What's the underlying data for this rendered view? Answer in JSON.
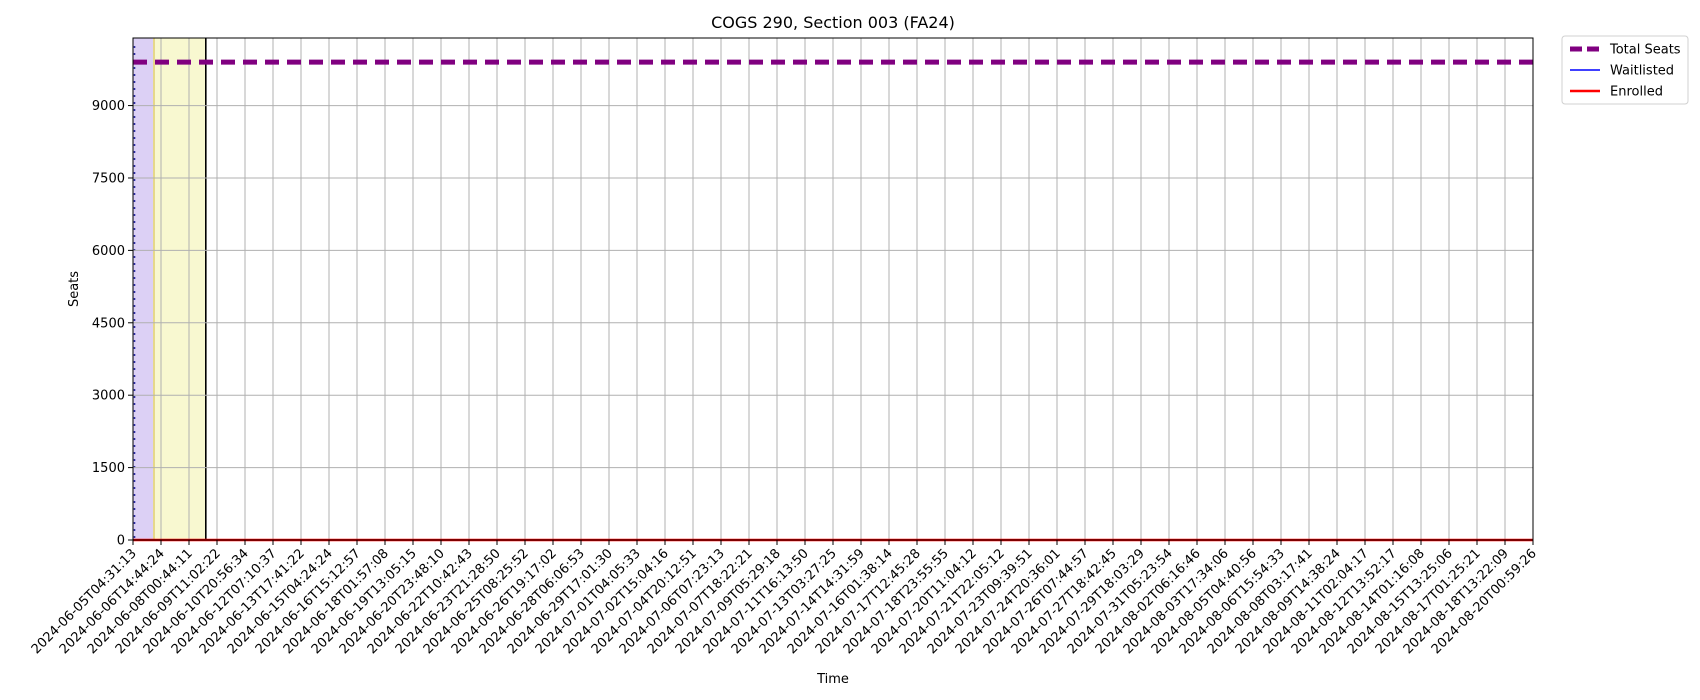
{
  "chart_data": {
    "type": "line",
    "title": "COGS 290, Section 003 (FA24)",
    "xlabel": "Time",
    "ylabel": "Seats",
    "ylim": [
      0,
      10400
    ],
    "yticks": [
      0,
      1500,
      3000,
      4500,
      6000,
      7500,
      9000
    ],
    "grid": true,
    "legend_position": "outside-top-right",
    "x": [
      "2024-06-05T04:31:13",
      "2024-06-06T14:44:24",
      "2024-06-08T00:44:11",
      "2024-06-09T11:02:22",
      "2024-06-10T20:56:34",
      "2024-06-12T07:10:37",
      "2024-06-13T17:41:22",
      "2024-06-15T04:24:24",
      "2024-06-16T15:12:57",
      "2024-06-18T01:57:08",
      "2024-06-19T13:05:15",
      "2024-06-20T23:48:10",
      "2024-06-22T10:42:43",
      "2024-06-23T21:28:50",
      "2024-06-25T08:25:52",
      "2024-06-26T19:17:02",
      "2024-06-28T06:06:53",
      "2024-06-29T17:01:30",
      "2024-07-01T04:05:33",
      "2024-07-02T15:04:16",
      "2024-07-04T20:12:51",
      "2024-07-06T07:23:13",
      "2024-07-07T18:22:21",
      "2024-07-09T05:29:18",
      "2024-07-11T16:13:50",
      "2024-07-13T03:27:25",
      "2024-07-14T14:31:59",
      "2024-07-16T01:38:14",
      "2024-07-17T12:45:28",
      "2024-07-18T23:55:55",
      "2024-07-20T11:04:12",
      "2024-07-21T22:05:12",
      "2024-07-23T09:39:51",
      "2024-07-24T20:36:01",
      "2024-07-26T07:44:57",
      "2024-07-27T18:42:45",
      "2024-07-29T18:03:29",
      "2024-07-31T05:23:54",
      "2024-08-02T06:16:46",
      "2024-08-03T17:34:06",
      "2024-08-05T04:40:56",
      "2024-08-06T15:54:33",
      "2024-08-08T03:17:41",
      "2024-08-09T14:38:24",
      "2024-08-11T02:04:17",
      "2024-08-12T13:52:17",
      "2024-08-14T01:16:08",
      "2024-08-15T13:25:06",
      "2024-08-17T01:25:21",
      "2024-08-18T13:22:09",
      "2024-08-20T00:59:26"
    ],
    "series": [
      {
        "name": "Total Seats",
        "value": 9900,
        "color": "#800080",
        "style": "dashed"
      },
      {
        "name": "Waitlisted",
        "value": 0,
        "color": "#0000ff",
        "style": "solid"
      },
      {
        "name": "Enrolled",
        "value": 0,
        "color": "#ff0000",
        "style": "solid"
      }
    ],
    "shaded_regions": [
      {
        "from_index": 0,
        "to_index": 0.75,
        "color": "#dcd0f5"
      },
      {
        "from_index": 0.75,
        "to_index": 2.6,
        "color": "#f8f8d0"
      }
    ]
  }
}
